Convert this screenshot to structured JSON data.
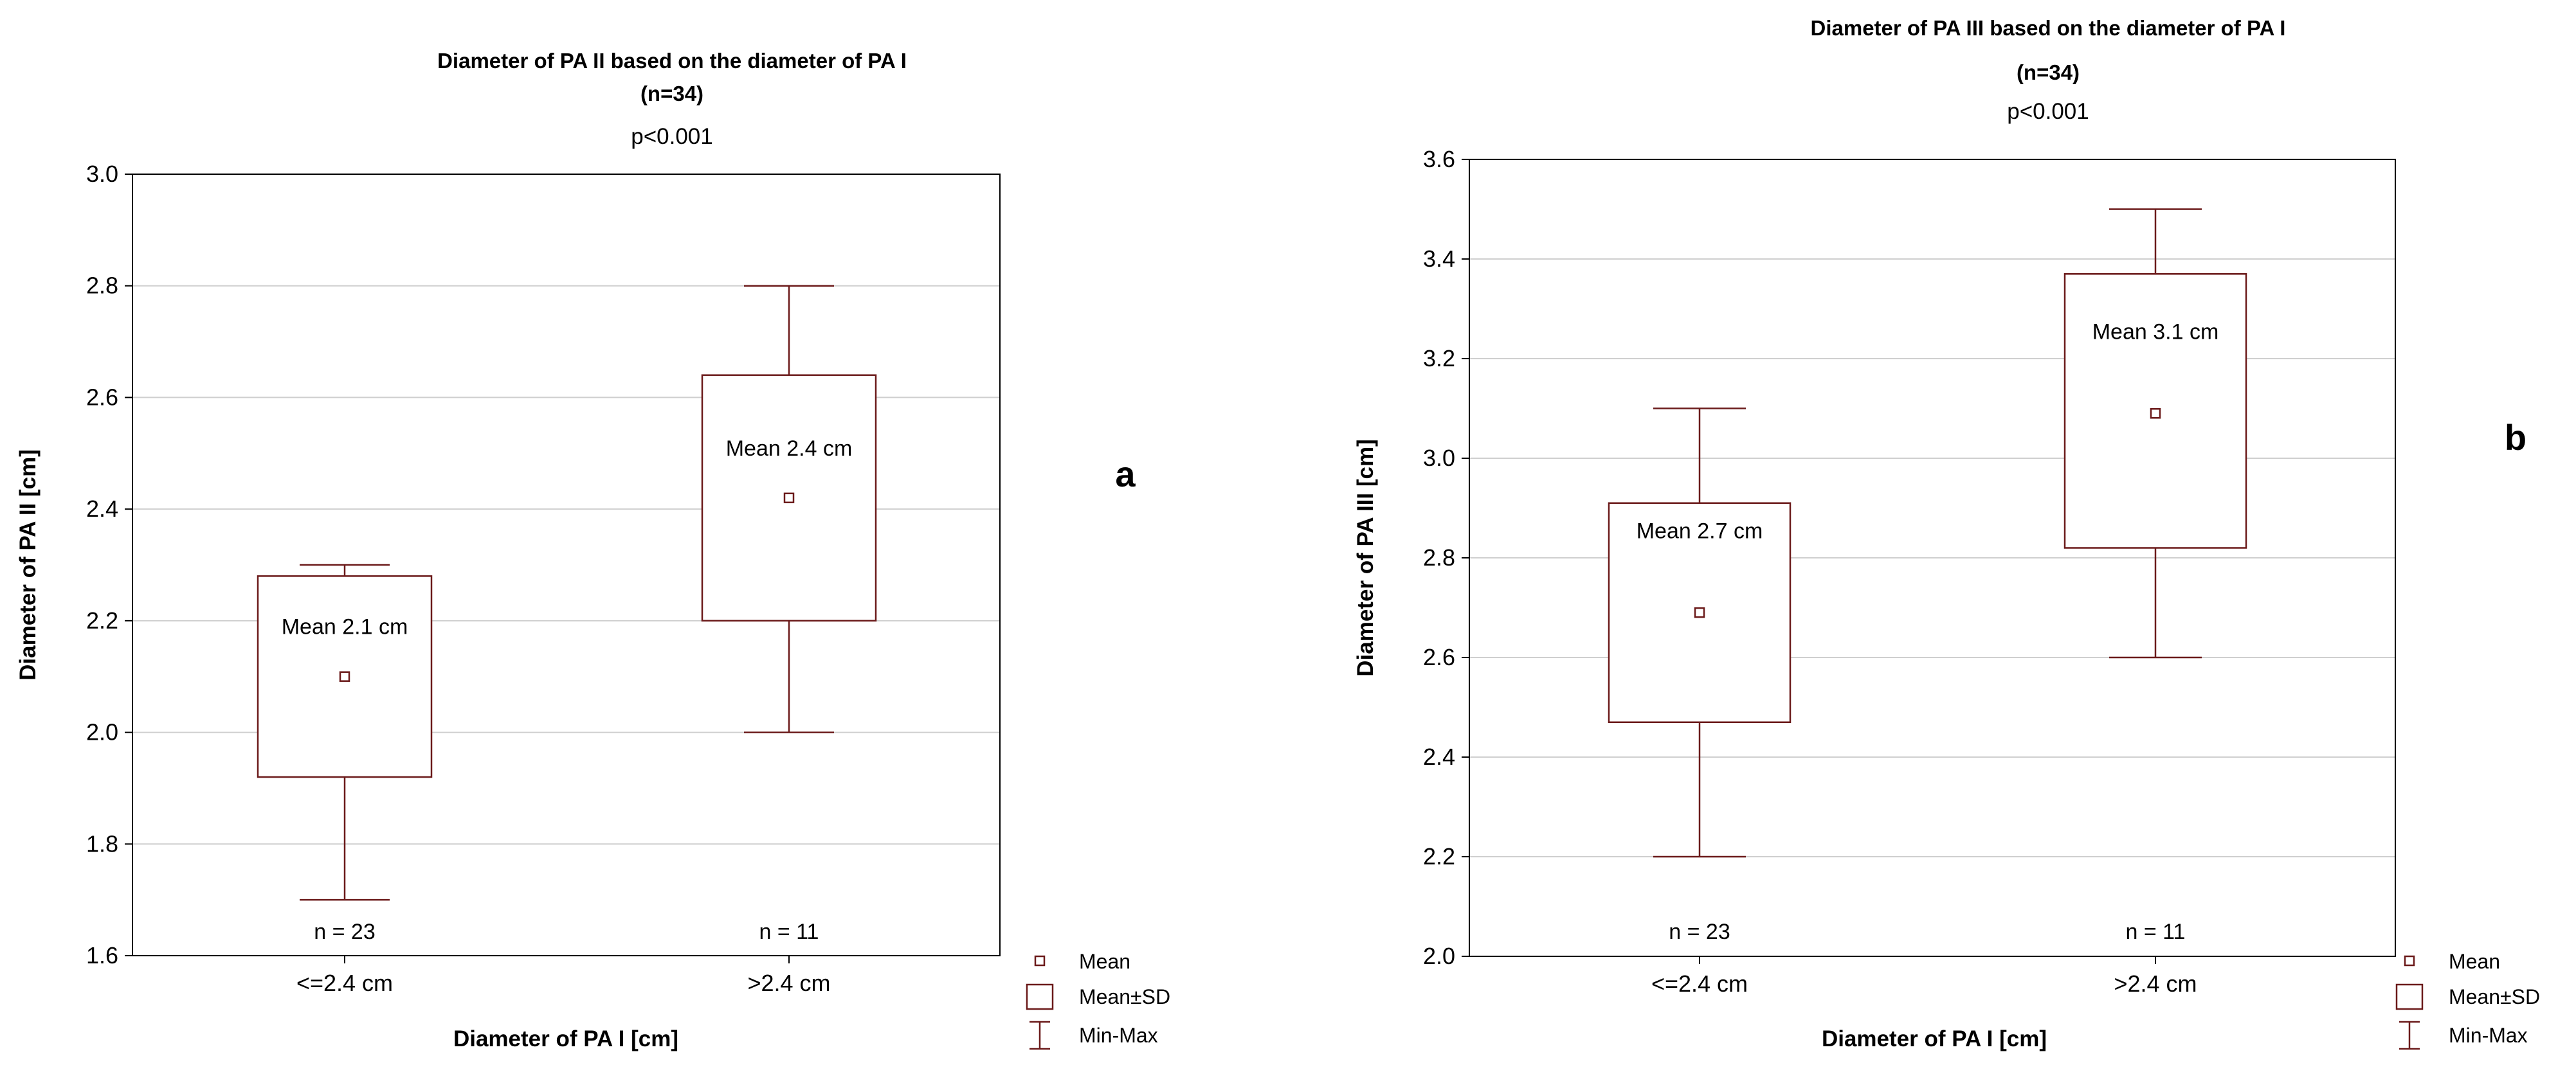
{
  "chart_data": [
    {
      "type": "box",
      "title": "Diameter of PA II based on the diameter of PA I",
      "subtitle": "(n=34)",
      "pvalue": "p<0.001",
      "panel_label": "a",
      "xlabel": "Diameter of  PA I [cm]",
      "ylabel": "Diameter of  PA II [cm]",
      "categories": [
        "<=2.4 cm",
        ">2.4 cm"
      ],
      "ylim": [
        1.6,
        3.0
      ],
      "yticks": [
        1.6,
        1.8,
        2.0,
        2.2,
        2.4,
        2.6,
        2.8,
        3.0
      ],
      "ytick_labels": [
        "1.6",
        "1.8",
        "2.0",
        "2.2",
        "2.4",
        "2.6",
        "2.8",
        "3.0"
      ],
      "grid": true,
      "groups": [
        {
          "category": "<=2.4 cm",
          "mean": 2.1,
          "sd_low": 1.92,
          "sd_high": 2.28,
          "min": 1.7,
          "max": 2.3,
          "mean_label": "Mean 2.1 cm",
          "n_label": "n = 23"
        },
        {
          "category": ">2.4 cm",
          "mean": 2.42,
          "sd_low": 2.2,
          "sd_high": 2.64,
          "min": 2.0,
          "max": 2.8,
          "mean_label": "Mean 2.4 cm",
          "n_label": "n = 11"
        }
      ],
      "legend": {
        "placement": "bottom-right",
        "items": [
          "Mean",
          "Mean±SD",
          "Min-Max"
        ]
      }
    },
    {
      "type": "box",
      "title": "Diameter of PA III based on the diameter of PA I",
      "subtitle": "(n=34)",
      "pvalue": "p<0.001",
      "panel_label": "b",
      "xlabel": "Diameter of  PA I [cm]",
      "ylabel": "Diameter of  PA III [cm]",
      "categories": [
        "<=2.4 cm",
        ">2.4 cm"
      ],
      "ylim": [
        2.0,
        3.6
      ],
      "yticks": [
        2.0,
        2.2,
        2.4,
        2.6,
        2.8,
        3.0,
        3.2,
        3.4,
        3.6
      ],
      "ytick_labels": [
        "2.0",
        "2.2",
        "2.4",
        "2.6",
        "2.8",
        "3.0",
        "3.2",
        "3.4",
        "3.6"
      ],
      "grid": true,
      "groups": [
        {
          "category": "<=2.4 cm",
          "mean": 2.69,
          "sd_low": 2.47,
          "sd_high": 2.91,
          "min": 2.2,
          "max": 3.1,
          "mean_label": "Mean 2.7 cm",
          "n_label": "n = 23"
        },
        {
          "category": ">2.4 cm",
          "mean": 3.09,
          "sd_low": 2.82,
          "sd_high": 3.37,
          "min": 2.6,
          "max": 3.5,
          "mean_label": "Mean 3.1 cm",
          "n_label": "n = 11"
        }
      ],
      "legend": {
        "placement": "bottom-right",
        "items": [
          "Mean",
          "Mean±SD",
          "Min-Max"
        ]
      }
    }
  ],
  "colors": {
    "box": "#6b1a1a",
    "grid": "#cfcfcf",
    "axis": "#000000"
  }
}
